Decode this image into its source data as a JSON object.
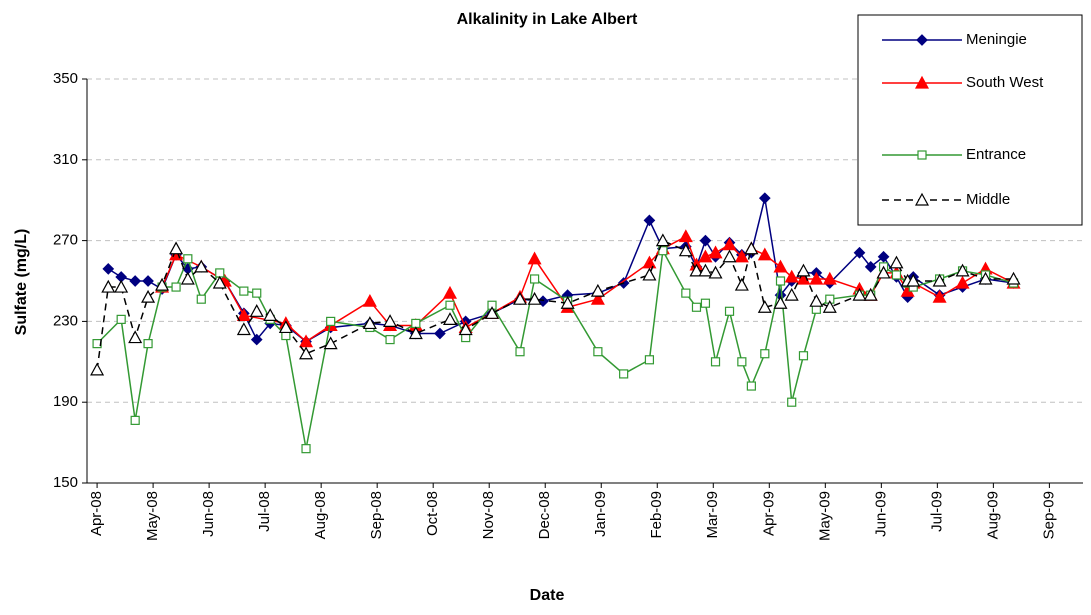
{
  "chart_data": {
    "type": "line",
    "title": "Alkalinity in Lake Albert",
    "x_label": "Date",
    "y_label": "Sulfate (mg/L)",
    "xlim": [
      -0.18,
      17.6
    ],
    "xticks": [
      {
        "value": 0,
        "label": "Apr-08"
      },
      {
        "value": 1,
        "label": "May-08"
      },
      {
        "value": 2,
        "label": "Jun-08"
      },
      {
        "value": 3,
        "label": "Jul-08"
      },
      {
        "value": 4,
        "label": "Aug-08"
      },
      {
        "value": 5,
        "label": "Sep-08"
      },
      {
        "value": 6,
        "label": "Oct-08"
      },
      {
        "value": 7,
        "label": "Nov-08"
      },
      {
        "value": 8,
        "label": "Dec-08"
      },
      {
        "value": 9,
        "label": "Jan-09"
      },
      {
        "value": 10,
        "label": "Feb-09"
      },
      {
        "value": 11,
        "label": "Mar-09"
      },
      {
        "value": 12,
        "label": "Apr-09"
      },
      {
        "value": 13,
        "label": "May-09"
      },
      {
        "value": 14,
        "label": "Jun-09"
      },
      {
        "value": 15,
        "label": "Jul-09"
      },
      {
        "value": 16,
        "label": "Aug-09"
      },
      {
        "value": 17,
        "label": "Sep-09"
      }
    ],
    "ylim": [
      150,
      350
    ],
    "yticks": [
      150,
      190,
      230,
      270,
      310,
      350
    ],
    "grid": true,
    "legend": "top-right",
    "series": [
      {
        "name": "Meningie",
        "color": "#000080",
        "marker": "diamond",
        "dashed": false,
        "x": [
          0.2,
          0.43,
          0.68,
          0.91,
          1.16,
          1.41,
          1.62,
          1.86,
          2.28,
          2.62,
          2.85,
          3.09,
          3.37,
          3.73,
          4.17,
          4.87,
          5.23,
          5.69,
          6.12,
          6.58,
          7.05,
          7.55,
          7.96,
          8.4,
          8.94,
          9.4,
          9.86,
          10.1,
          10.51,
          10.7,
          10.86,
          11.04,
          11.29,
          11.51,
          11.68,
          11.92,
          12.2,
          12.4,
          12.61,
          12.84,
          13.08,
          13.61,
          13.81,
          14.04,
          14.27,
          14.47,
          14.57,
          15.04,
          15.45,
          15.86,
          16.36
        ],
        "values": [
          256,
          252,
          250,
          250,
          246,
          263,
          256,
          257,
          250,
          234,
          221,
          229,
          228,
          220,
          227,
          229,
          228,
          224,
          224,
          230,
          234,
          241,
          240,
          243,
          244,
          249,
          280,
          266,
          267,
          257,
          270,
          262,
          269,
          263,
          264,
          291,
          243,
          250,
          254,
          254,
          249,
          264,
          257,
          262,
          252,
          242,
          252,
          243,
          247,
          251,
          249
        ]
      },
      {
        "name": "South West",
        "color": "#ff0000",
        "marker": "triangle",
        "dashed": false,
        "x": [
          1.16,
          1.41,
          1.86,
          2.28,
          2.62,
          3.37,
          3.73,
          4.17,
          4.87,
          5.23,
          5.69,
          6.3,
          6.58,
          7.05,
          7.55,
          7.81,
          8.4,
          8.94,
          9.86,
          10.1,
          10.51,
          10.7,
          10.86,
          11.04,
          11.29,
          11.51,
          11.68,
          11.92,
          12.2,
          12.4,
          12.61,
          12.84,
          13.08,
          13.61,
          13.81,
          14.04,
          14.27,
          14.47,
          14.57,
          15.04,
          15.45,
          15.86,
          16.36
        ],
        "values": [
          247,
          263,
          257,
          250,
          233,
          229,
          220,
          228,
          240,
          228,
          228,
          244,
          227,
          234,
          242,
          261,
          237,
          241,
          259,
          266,
          272,
          258,
          262,
          264,
          268,
          262,
          266,
          263,
          257,
          252,
          251,
          251,
          251,
          246,
          243,
          254,
          254,
          245,
          249,
          242,
          249,
          256,
          249
        ]
      },
      {
        "name": "Entrance",
        "color": "#339933",
        "marker": "square",
        "dashed": false,
        "x": [
          0,
          0.43,
          0.68,
          0.91,
          1.16,
          1.41,
          1.62,
          1.86,
          2.19,
          2.62,
          2.85,
          3.09,
          3.37,
          3.73,
          4.17,
          4.87,
          5.23,
          5.69,
          6.3,
          6.58,
          7.05,
          7.55,
          7.81,
          8.4,
          8.94,
          9.4,
          9.86,
          10.1,
          10.51,
          10.7,
          10.86,
          11.04,
          11.29,
          11.51,
          11.68,
          11.92,
          12.2,
          12.4,
          12.61,
          12.84,
          13.08,
          13.61,
          13.81,
          14.04,
          14.27,
          14.47,
          14.57,
          15.04,
          15.45,
          15.86,
          16.36
        ],
        "values": [
          219,
          231,
          181,
          219,
          247,
          247,
          261,
          241,
          254,
          245,
          244,
          231,
          223,
          167,
          230,
          227,
          221,
          229,
          238,
          222,
          238,
          215,
          251,
          240,
          215,
          204,
          211,
          265,
          244,
          237,
          239,
          210,
          235,
          210,
          198,
          214,
          250,
          190,
          213,
          236,
          241,
          243,
          243,
          257,
          253,
          249,
          247,
          251,
          255,
          253,
          249
        ]
      },
      {
        "name": "Middle",
        "color": "#000000",
        "marker": "open-triangle",
        "dashed": true,
        "x": [
          0,
          0.2,
          0.43,
          0.68,
          0.91,
          1.16,
          1.41,
          1.62,
          1.86,
          2.19,
          2.62,
          2.85,
          3.09,
          3.37,
          3.73,
          4.17,
          4.87,
          5.23,
          5.69,
          6.3,
          6.58,
          7.05,
          7.55,
          7.81,
          8.4,
          8.94,
          9.86,
          10.1,
          10.51,
          10.7,
          10.86,
          11.04,
          11.29,
          11.51,
          11.68,
          11.92,
          12.2,
          12.4,
          12.61,
          12.84,
          13.08,
          13.61,
          13.81,
          14.04,
          14.27,
          14.47,
          14.57,
          15.04,
          15.45,
          15.86,
          16.36
        ],
        "values": [
          206,
          247,
          247,
          222,
          242,
          248,
          266,
          251,
          257,
          249,
          226,
          235,
          233,
          227,
          214,
          219,
          229,
          230,
          224,
          231,
          226,
          234,
          241,
          241,
          239,
          245,
          253,
          270,
          265,
          255,
          255,
          254,
          262,
          248,
          266,
          237,
          239,
          243,
          255,
          240,
          237,
          243,
          243,
          254,
          259,
          250,
          250,
          250,
          255,
          251,
          251
        ]
      }
    ]
  }
}
